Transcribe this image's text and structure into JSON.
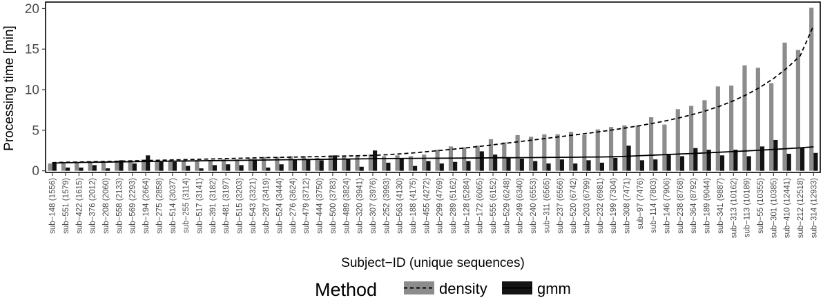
{
  "chart_data": {
    "type": "bar",
    "xlabel": "Subject−ID (unique sequences)",
    "ylabel": "Processing time [min]",
    "ylim": [
      -0.2,
      20.8
    ],
    "yticks": [
      0,
      5,
      10,
      15,
      20
    ],
    "grid": false,
    "legend": {
      "title": "Method",
      "position": "bottom"
    },
    "categories": [
      "sub−148 (1556)",
      "sub−551 (1579)",
      "sub−422 (1615)",
      "sub−376 (2012)",
      "sub−208 (2060)",
      "sub−558 (2133)",
      "sub−569 (2293)",
      "sub−194 (2664)",
      "sub−275 (2858)",
      "sub−514 (3037)",
      "sub−255 (3114)",
      "sub−517 (3141)",
      "sub−391 (3182)",
      "sub−481 (3197)",
      "sub−515 (3203)",
      "sub−543 (3321)",
      "sub−287 (3419)",
      "sub−524 (3444)",
      "sub−276 (3624)",
      "sub−479 (3712)",
      "sub−444 (3750)",
      "sub−500 (3783)",
      "sub−489 (3824)",
      "sub−320 (3941)",
      "sub−307 (3976)",
      "sub−252 (3993)",
      "sub−563 (4130)",
      "sub−188 (4175)",
      "sub−455 (4272)",
      "sub−299 (4769)",
      "sub−289 (5162)",
      "sub−128 (5284)",
      "sub−172 (6065)",
      "sub−555 (6152)",
      "sub−529 (6248)",
      "sub−249 (6340)",
      "sub−240 (6553)",
      "sub−311 (6565)",
      "sub−237 (6566)",
      "sub−520 (6742)",
      "sub−203 (6799)",
      "sub−232 (6981)",
      "sub−199 (7304)",
      "sub−308 (7471)",
      "sub−97 (7476)",
      "sub−114 (7803)",
      "sub−146 (7906)",
      "sub−238 (8768)",
      "sub−364 (8792)",
      "sub−189 (9044)",
      "sub−341 (9887)",
      "sub−313 (10162)",
      "sub−113 (10189)",
      "sub−55 (10355)",
      "sub−301 (10385)",
      "sub−410 (12441)",
      "sub−212 (12518)",
      "sub−314 (12933)"
    ],
    "series": [
      {
        "name": "density",
        "color": "#8c8c8c",
        "trend_style": "dashed",
        "values": [
          0.9,
          1.0,
          1.0,
          1.1,
          1.1,
          1.2,
          1.3,
          1.4,
          1.2,
          1.3,
          1.3,
          1.3,
          1.3,
          1.4,
          1.4,
          1.5,
          1.7,
          1.7,
          1.8,
          1.8,
          1.6,
          1.9,
          1.9,
          1.9,
          2.0,
          1.8,
          1.9,
          1.8,
          2.0,
          2.6,
          3.0,
          2.9,
          3.1,
          3.9,
          3.5,
          4.4,
          4.2,
          4.5,
          4.5,
          4.8,
          4.4,
          5.1,
          5.4,
          5.6,
          5.6,
          6.6,
          5.7,
          7.6,
          8.0,
          8.7,
          10.4,
          10.5,
          13.0,
          12.7,
          10.8,
          15.8,
          14.9,
          20.1
        ],
        "trend": [
          1.0,
          1.05,
          1.08,
          1.12,
          1.15,
          1.18,
          1.22,
          1.26,
          1.3,
          1.34,
          1.38,
          1.42,
          1.46,
          1.5,
          1.54,
          1.58,
          1.62,
          1.65,
          1.69,
          1.72,
          1.76,
          1.79,
          1.82,
          1.86,
          1.9,
          1.98,
          2.08,
          2.2,
          2.35,
          2.5,
          2.66,
          2.83,
          3.01,
          3.2,
          3.4,
          3.6,
          3.8,
          4.0,
          4.2,
          4.4,
          4.6,
          4.82,
          5.05,
          5.3,
          5.57,
          5.86,
          6.18,
          6.55,
          6.96,
          7.43,
          7.98,
          8.63,
          9.39,
          10.3,
          11.37,
          12.65,
          14.18,
          17.9
        ]
      },
      {
        "name": "gmm",
        "color": "#141414",
        "trend_style": "solid",
        "values": [
          1.0,
          0.4,
          0.4,
          0.7,
          0.3,
          1.3,
          0.9,
          1.9,
          1.1,
          1.1,
          0.6,
          0.3,
          0.7,
          0.8,
          0.7,
          1.4,
          0.4,
          0.8,
          1.4,
          1.4,
          1.3,
          1.9,
          1.5,
          0.5,
          2.5,
          1.0,
          1.5,
          0.6,
          1.2,
          0.9,
          1.1,
          1.2,
          2.4,
          2.0,
          1.6,
          1.5,
          1.2,
          0.9,
          1.4,
          0.9,
          1.3,
          1.0,
          1.6,
          3.1,
          1.3,
          1.4,
          2.1,
          1.8,
          2.8,
          2.6,
          1.9,
          2.6,
          1.8,
          3.0,
          3.8,
          2.1,
          2.8,
          2.2
        ],
        "trend": [
          0.95,
          0.99,
          1.02,
          1.05,
          1.07,
          1.1,
          1.12,
          1.15,
          1.17,
          1.19,
          1.21,
          1.23,
          1.25,
          1.27,
          1.29,
          1.31,
          1.33,
          1.35,
          1.37,
          1.39,
          1.41,
          1.43,
          1.45,
          1.47,
          1.49,
          1.51,
          1.52,
          1.53,
          1.54,
          1.55,
          1.56,
          1.57,
          1.58,
          1.6,
          1.61,
          1.62,
          1.63,
          1.65,
          1.66,
          1.67,
          1.69,
          1.7,
          1.73,
          1.79,
          1.86,
          1.93,
          2.0,
          2.07,
          2.14,
          2.21,
          2.29,
          2.37,
          2.45,
          2.54,
          2.63,
          2.73,
          2.83,
          2.95
        ]
      }
    ]
  }
}
